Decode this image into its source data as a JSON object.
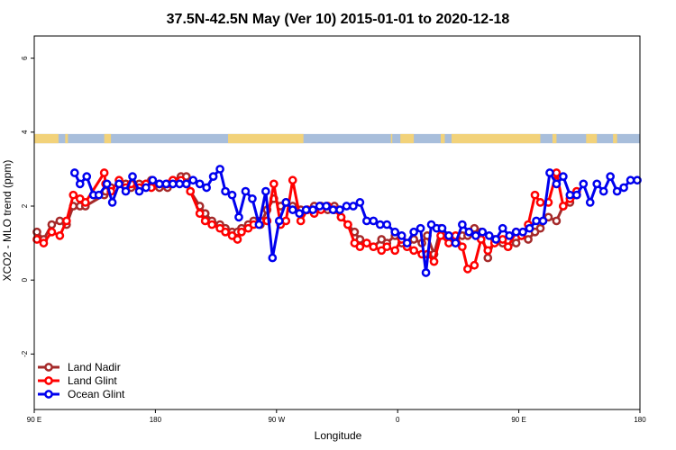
{
  "chart_data": {
    "type": "line",
    "title": "37.5N-42.5N May (Ver 10)   2015-01-01 to 2020-12-18",
    "xlabel": "Longitude",
    "ylabel": "XCO2 - MLO trend (ppm)",
    "xlim": [
      90,
      540
    ],
    "ylim": [
      -3.5,
      6.6
    ],
    "xticks": [
      {
        "value": 90,
        "label": "90 E"
      },
      {
        "value": 180,
        "label": "180"
      },
      {
        "value": 270,
        "label": "90 W"
      },
      {
        "value": 360,
        "label": "0"
      },
      {
        "value": 450,
        "label": "90 E"
      },
      {
        "value": 540,
        "label": "180"
      }
    ],
    "yticks": [
      {
        "value": -2,
        "label": "-2"
      },
      {
        "value": 0,
        "label": "0"
      },
      {
        "value": 2,
        "label": "2"
      },
      {
        "value": 4,
        "label": "4"
      },
      {
        "value": 6,
        "label": "6"
      }
    ],
    "legend_position": "bottom-left",
    "land_ocean_strip": {
      "y_range": [
        3.7,
        3.95
      ],
      "land_color": "#f2d27a",
      "ocean_color": "#a8bedb",
      "land_segments": [
        [
          90,
          108
        ],
        [
          113,
          115
        ],
        [
          142,
          147
        ],
        [
          234,
          290
        ],
        [
          355,
          356
        ],
        [
          362,
          372
        ],
        [
          392,
          395
        ],
        [
          400,
          466
        ],
        [
          475,
          478
        ],
        [
          500,
          508
        ],
        [
          520,
          523
        ]
      ]
    },
    "series": [
      {
        "name": "Land Nadir",
        "color": "#a52a2a",
        "x": [
          92,
          97,
          103,
          109,
          114,
          119,
          124,
          128,
          142,
          143,
          147,
          153,
          158,
          162,
          168,
          173,
          177,
          183,
          189,
          193,
          199,
          203,
          206,
          213,
          217,
          222,
          228,
          232,
          237,
          241,
          244,
          249,
          253,
          258,
          263,
          268,
          273,
          277,
          282,
          288,
          293,
          298,
          303,
          308,
          313,
          318,
          323,
          328,
          332,
          337,
          342,
          348,
          352,
          358,
          363,
          367,
          372,
          378,
          382,
          387,
          392,
          398,
          403,
          408,
          412,
          417,
          422,
          427,
          432,
          438,
          442,
          448,
          452,
          457,
          462,
          466,
          472,
          478,
          483,
          488,
          493
        ],
        "y": [
          1.3,
          1.1,
          1.5,
          1.6,
          1.5,
          2.0,
          2.0,
          2.0,
          2.3,
          2.4,
          2.5,
          2.6,
          2.6,
          2.5,
          2.6,
          2.6,
          2.7,
          2.5,
          2.5,
          2.7,
          2.8,
          2.8,
          2.4,
          2.0,
          1.8,
          1.6,
          1.5,
          1.4,
          1.3,
          1.3,
          1.4,
          1.5,
          1.6,
          1.5,
          1.9,
          2.2,
          2.0,
          2.1,
          2.0,
          1.9,
          1.9,
          2.0,
          2.0,
          1.9,
          2.0,
          1.7,
          1.5,
          1.3,
          1.1,
          1.0,
          0.9,
          1.1,
          1.0,
          1.2,
          1.0,
          0.9,
          1.1,
          1.0,
          1.2,
          0.7,
          1.4,
          1.2,
          1.1,
          1.2,
          1.2,
          1.4,
          1.3,
          0.6,
          1.1,
          1.0,
          0.9,
          1.0,
          1.2,
          1.1,
          1.3,
          1.4,
          1.7,
          1.6,
          2.0,
          2.1,
          2.3
        ]
      },
      {
        "name": "Land Glint",
        "color": "#ff0000",
        "x": [
          92,
          97,
          103,
          109,
          114,
          119,
          124,
          128,
          142,
          143,
          147,
          153,
          158,
          162,
          168,
          173,
          177,
          183,
          189,
          193,
          199,
          203,
          206,
          213,
          217,
          222,
          228,
          232,
          237,
          241,
          244,
          249,
          253,
          258,
          263,
          268,
          273,
          277,
          282,
          288,
          293,
          298,
          303,
          308,
          313,
          318,
          323,
          328,
          332,
          337,
          342,
          348,
          352,
          358,
          363,
          367,
          372,
          378,
          382,
          387,
          392,
          398,
          403,
          408,
          412,
          417,
          422,
          427,
          432,
          438,
          442,
          448,
          452,
          457,
          462,
          466,
          472,
          478,
          483,
          488,
          493
        ],
        "y": [
          1.1,
          1.0,
          1.3,
          1.2,
          1.6,
          2.3,
          2.2,
          2.1,
          2.9,
          2.6,
          2.4,
          2.7,
          2.5,
          2.6,
          2.5,
          2.6,
          2.5,
          2.6,
          2.6,
          2.7,
          2.7,
          2.6,
          2.4,
          1.8,
          1.6,
          1.5,
          1.4,
          1.3,
          1.2,
          1.1,
          1.3,
          1.4,
          1.5,
          1.6,
          1.6,
          2.6,
          1.5,
          1.6,
          2.7,
          1.6,
          1.9,
          1.8,
          1.9,
          2.0,
          1.9,
          1.7,
          1.5,
          1.0,
          0.9,
          1.0,
          0.9,
          0.8,
          0.9,
          0.8,
          1.1,
          0.9,
          0.8,
          0.7,
          0.7,
          0.5,
          1.2,
          1.0,
          1.2,
          0.9,
          0.3,
          0.4,
          1.1,
          0.8,
          1.0,
          1.1,
          0.9,
          1.3,
          1.2,
          1.5,
          2.3,
          2.1,
          2.1,
          2.9,
          2.0,
          2.2,
          2.4
        ]
      },
      {
        "name": "Ocean Glint",
        "color": "#0000ee",
        "x": [
          120,
          124,
          129,
          134,
          138,
          144,
          148,
          153,
          158,
          163,
          168,
          173,
          178,
          183,
          188,
          193,
          198,
          203,
          208,
          213,
          218,
          223,
          228,
          232,
          237,
          242,
          247,
          252,
          257,
          262,
          267,
          272,
          277,
          282,
          287,
          292,
          297,
          302,
          307,
          312,
          317,
          322,
          327,
          332,
          337,
          342,
          347,
          352,
          358,
          363,
          367,
          372,
          377,
          381,
          385,
          389,
          393,
          398,
          403,
          408,
          413,
          418,
          423,
          428,
          433,
          438,
          443,
          448,
          453,
          458,
          463,
          468,
          473,
          478,
          483,
          488,
          493,
          498,
          503,
          508,
          513,
          518,
          523,
          528,
          533,
          538
        ],
        "y": [
          2.9,
          2.6,
          2.8,
          2.3,
          2.3,
          2.6,
          2.1,
          2.6,
          2.4,
          2.8,
          2.4,
          2.5,
          2.7,
          2.6,
          2.6,
          2.6,
          2.6,
          2.6,
          2.7,
          2.6,
          2.5,
          2.8,
          3.0,
          2.4,
          2.3,
          1.7,
          2.4,
          2.2,
          1.5,
          2.4,
          0.6,
          1.6,
          2.1,
          1.9,
          1.8,
          1.9,
          1.9,
          2.0,
          2.0,
          1.9,
          1.9,
          2.0,
          2.0,
          2.1,
          1.6,
          1.6,
          1.5,
          1.5,
          1.3,
          1.2,
          1.0,
          1.3,
          1.4,
          0.2,
          1.5,
          1.4,
          1.4,
          1.2,
          1.0,
          1.5,
          1.3,
          1.2,
          1.3,
          1.2,
          1.1,
          1.4,
          1.2,
          1.3,
          1.3,
          1.4,
          1.6,
          1.6,
          2.9,
          2.6,
          2.8,
          2.3,
          2.3,
          2.6,
          2.1,
          2.6,
          2.4,
          2.8,
          2.4,
          2.5,
          2.7,
          2.7
        ]
      }
    ]
  }
}
